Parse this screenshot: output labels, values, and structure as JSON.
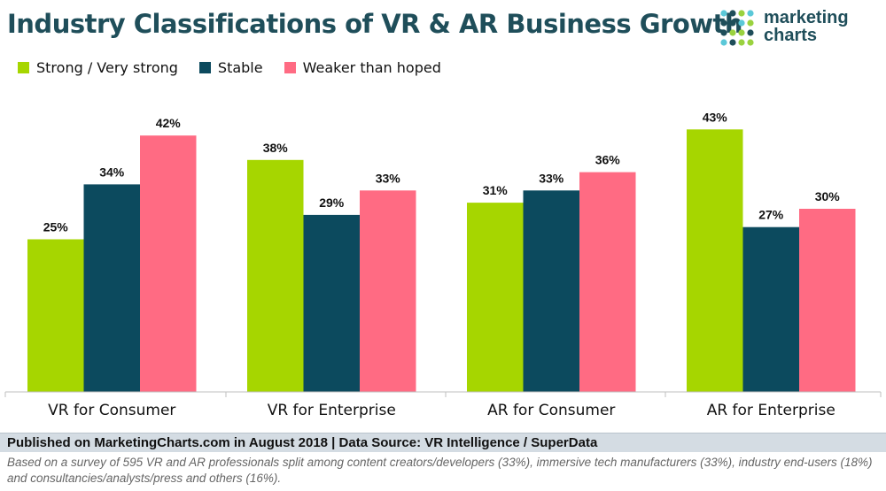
{
  "title": "Industry Classifications of VR & AR Business Growth",
  "logo": {
    "line1": "marketing",
    "line2": "charts",
    "dot_colors": [
      "#5bc8d8",
      "#1f4e5a",
      "#9ad23f"
    ]
  },
  "legend": [
    {
      "label": "Strong / Very strong",
      "color": "#a6d600"
    },
    {
      "label": "Stable",
      "color": "#0c4a5e"
    },
    {
      "label": "Weaker than hoped",
      "color": "#ff6b83"
    }
  ],
  "chart_data": {
    "type": "bar",
    "title": "Industry Classifications of VR & AR Business Growth",
    "xlabel": "",
    "ylabel": "",
    "ylim": [
      0,
      50
    ],
    "grid": false,
    "legend_position": "top-left",
    "categories": [
      "VR for Consumer",
      "VR for Enterprise",
      "AR for Consumer",
      "AR for Enterprise"
    ],
    "series": [
      {
        "name": "Strong / Very strong",
        "color": "#a6d600",
        "values": [
          25,
          38,
          31,
          43
        ],
        "labels": [
          "25%",
          "38%",
          "31%",
          "43%"
        ]
      },
      {
        "name": "Stable",
        "color": "#0c4a5e",
        "values": [
          34,
          29,
          33,
          27
        ],
        "labels": [
          "34%",
          "29%",
          "33%",
          "27%"
        ]
      },
      {
        "name": "Weaker than hoped",
        "color": "#ff6b83",
        "values": [
          42,
          33,
          36,
          30
        ],
        "labels": [
          "42%",
          "33%",
          "36%",
          "30%"
        ]
      }
    ]
  },
  "footer": {
    "published": "Published on MarketingCharts.com in August 2018 | Data Source: VR Intelligence / SuperData",
    "note": "Based on a survey of 595 VR and AR professionals split among content creators/developers (33%), immersive tech manufacturers (33%), industry end-users (18%) and consultancies/analysts/press and others (16%)."
  }
}
